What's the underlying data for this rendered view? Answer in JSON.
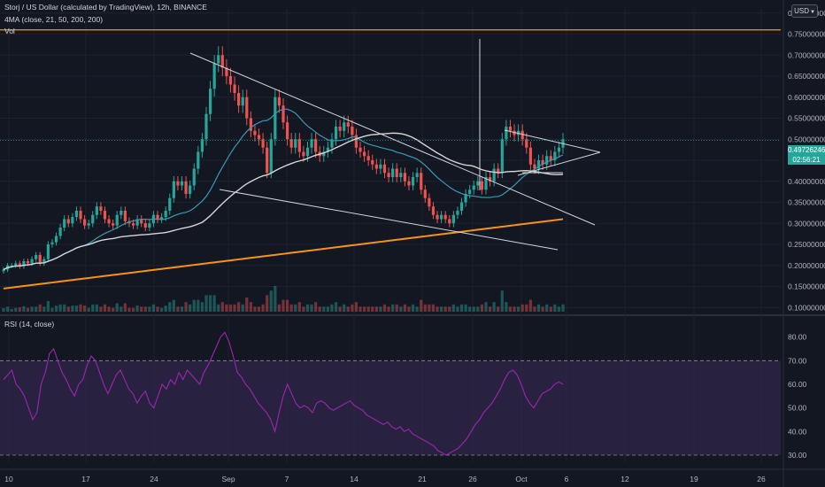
{
  "header": {
    "title": "Storj / US Dollar (calculated by TradingView), 12h, BINANCE",
    "ma_label": "4MA (close, 21, 50, 200, 200)",
    "vol_label": "Vol",
    "currency_badge": "USD"
  },
  "rsi_panel": {
    "label": "RSI (14, close)"
  },
  "current_price": {
    "value": "0.49726246",
    "countdown": "02:56:21"
  },
  "colors": {
    "background": "#131722",
    "bull": "#26a69a",
    "bear": "#ef5350",
    "ma21": "#3a9bb3",
    "ma50": "#d6d6d6",
    "ma200": "#f7931a",
    "resistance": "#f7931a",
    "rsi_line": "#9c27b0",
    "rsi_band": "#3b2a5a"
  },
  "chart_data": [
    {
      "type": "candlestick",
      "y_axis_ticks": [
        "0.80000000",
        "0.75000000",
        "0.70000000",
        "0.65000000",
        "0.60000000",
        "0.55000000",
        "0.50000000",
        "0.45000000",
        "0.40000000",
        "0.35000000",
        "0.30000000",
        "0.25000000",
        "0.20000000",
        "0.15000000",
        "0.10000000"
      ],
      "ylim": [
        0.09,
        0.81
      ],
      "x_axis_ticks": [
        "10",
        "17",
        "24",
        "Sep",
        "7",
        "14",
        "21",
        "26",
        "Oct",
        "6",
        "12",
        "19",
        "26"
      ],
      "resistance_level": 0.76,
      "current_price": 0.4973,
      "closes": [
        0.19,
        0.2,
        0.2,
        0.205,
        0.198,
        0.21,
        0.205,
        0.215,
        0.225,
        0.205,
        0.215,
        0.25,
        0.255,
        0.27,
        0.29,
        0.31,
        0.3,
        0.315,
        0.33,
        0.31,
        0.295,
        0.3,
        0.32,
        0.34,
        0.33,
        0.31,
        0.3,
        0.295,
        0.32,
        0.33,
        0.305,
        0.3,
        0.295,
        0.31,
        0.3,
        0.29,
        0.3,
        0.32,
        0.31,
        0.315,
        0.33,
        0.36,
        0.4,
        0.39,
        0.4,
        0.37,
        0.39,
        0.43,
        0.47,
        0.5,
        0.56,
        0.62,
        0.68,
        0.7,
        0.67,
        0.65,
        0.63,
        0.61,
        0.58,
        0.6,
        0.55,
        0.52,
        0.51,
        0.5,
        0.48,
        0.42,
        0.5,
        0.6,
        0.58,
        0.54,
        0.5,
        0.48,
        0.5,
        0.47,
        0.46,
        0.48,
        0.5,
        0.47,
        0.46,
        0.47,
        0.48,
        0.5,
        0.53,
        0.52,
        0.54,
        0.53,
        0.51,
        0.48,
        0.47,
        0.46,
        0.45,
        0.44,
        0.43,
        0.44,
        0.42,
        0.41,
        0.43,
        0.41,
        0.42,
        0.4,
        0.39,
        0.41,
        0.42,
        0.38,
        0.36,
        0.34,
        0.32,
        0.31,
        0.32,
        0.31,
        0.3,
        0.32,
        0.33,
        0.35,
        0.37,
        0.38,
        0.39,
        0.4,
        0.38,
        0.41,
        0.4,
        0.43,
        0.42,
        0.5,
        0.53,
        0.52,
        0.51,
        0.52,
        0.5,
        0.48,
        0.44,
        0.43,
        0.45,
        0.44,
        0.46,
        0.45,
        0.47,
        0.48,
        0.5
      ]
    },
    {
      "type": "line",
      "name": "RSI",
      "y_axis_ticks": [
        "80.00",
        "70.00",
        "60.00",
        "50.00",
        "40.00",
        "30.00"
      ],
      "ylim": [
        27,
        84
      ],
      "bands": [
        30,
        70
      ],
      "values": [
        62,
        64,
        66,
        60,
        58,
        55,
        50,
        45,
        48,
        60,
        65,
        73,
        75,
        70,
        65,
        62,
        58,
        55,
        60,
        62,
        68,
        72,
        70,
        65,
        60,
        56,
        60,
        64,
        66,
        62,
        58,
        56,
        52,
        55,
        57,
        52,
        50,
        55,
        60,
        58,
        62,
        60,
        65,
        62,
        66,
        64,
        62,
        60,
        65,
        68,
        72,
        76,
        80,
        82,
        78,
        72,
        65,
        63,
        60,
        58,
        55,
        52,
        50,
        48,
        45,
        40,
        48,
        55,
        60,
        56,
        52,
        50,
        51,
        50,
        48,
        52,
        53,
        52,
        50,
        49,
        50,
        51,
        52,
        53,
        51,
        50,
        49,
        47,
        46,
        45,
        44,
        43,
        44,
        42,
        41,
        42,
        40,
        41,
        39,
        38,
        37,
        36,
        35,
        34,
        32,
        31,
        30,
        31,
        32,
        33,
        35,
        37,
        40,
        43,
        45,
        48,
        50,
        52,
        55,
        58,
        62,
        65,
        66,
        64,
        60,
        55,
        52,
        50,
        53,
        56,
        57,
        58,
        60,
        61,
        60
      ]
    }
  ]
}
